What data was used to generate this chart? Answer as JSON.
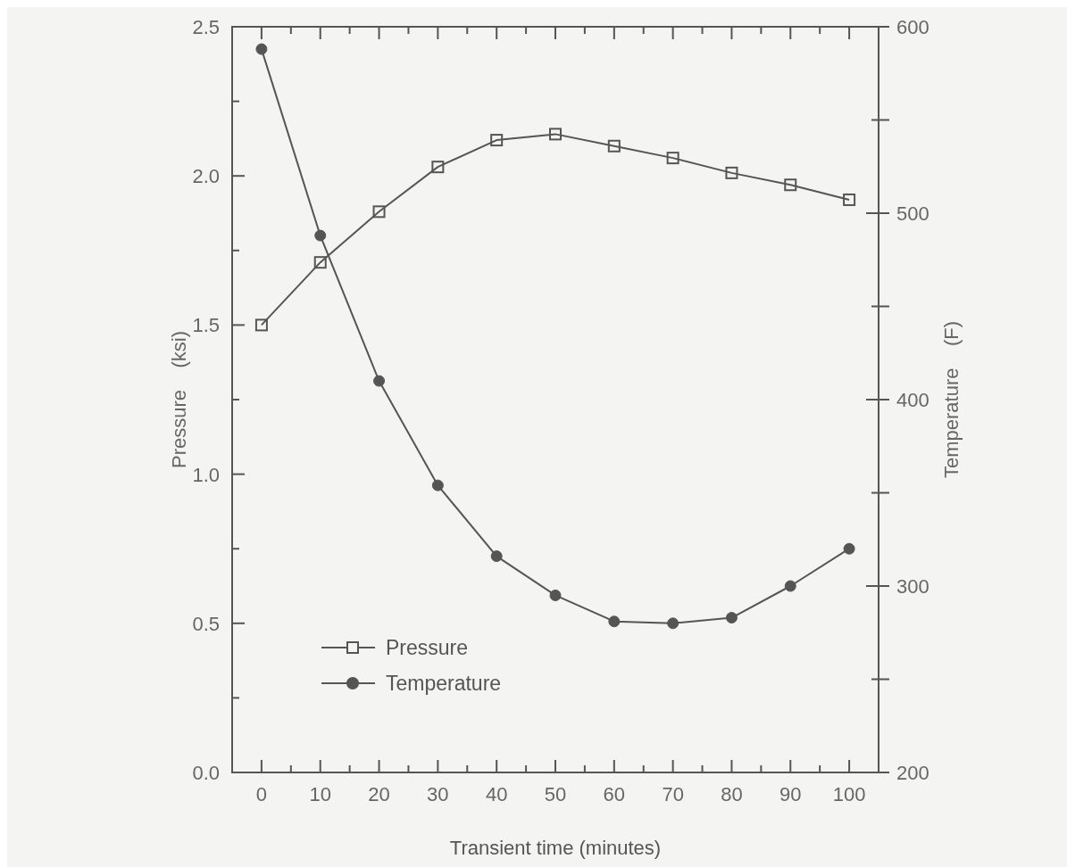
{
  "chart_data": {
    "type": "line",
    "xlabel": "Transient time (minutes)",
    "ylabel": "Pressure    (ksi)",
    "y2label": "Temperature    (F)",
    "x": [
      0,
      10,
      20,
      30,
      40,
      50,
      60,
      70,
      80,
      90,
      100
    ],
    "series": [
      {
        "name": "Pressure",
        "color": "#555555",
        "marker": "square",
        "values": [
          1.5,
          1.71,
          1.88,
          2.03,
          2.12,
          2.14,
          2.1,
          2.06,
          2.01,
          1.97,
          1.92
        ]
      },
      {
        "name": "Temperature",
        "color": "#555555",
        "marker": "circle",
        "axis": "y2",
        "values": [
          588,
          488,
          410,
          354,
          316,
          295,
          281,
          280,
          283,
          300,
          320
        ]
      }
    ],
    "xlim": [
      -5,
      105
    ],
    "xticks": [
      0,
      {
        "value": 5,
        "label": null
      },
      10,
      {
        "value": 15,
        "label": null
      },
      20,
      {
        "value": 25,
        "label": null
      },
      30,
      {
        "value": 35,
        "label": null
      },
      40,
      {
        "value": 45,
        "label": null
      },
      50,
      {
        "value": 55,
        "label": null
      },
      60,
      {
        "value": 65,
        "label": null
      },
      70,
      {
        "value": 75,
        "label": null
      },
      80,
      {
        "value": 85,
        "label": null
      },
      90,
      {
        "value": 95,
        "label": null
      },
      100
    ],
    "ylim": [
      0,
      2.5
    ],
    "yticks": [
      {
        "value": 0,
        "label": "0.0"
      },
      {
        "value": 0.25,
        "label": null
      },
      {
        "value": 0.5,
        "label": "0.5"
      },
      {
        "value": 0.75,
        "label": null
      },
      {
        "value": 1,
        "label": "1.0"
      },
      {
        "value": 1.25,
        "label": null
      },
      {
        "value": 1.5,
        "label": "1.5"
      },
      {
        "value": 1.75,
        "label": null
      },
      {
        "value": 2,
        "label": "2.0"
      },
      {
        "value": 2.25,
        "label": null
      },
      {
        "value": 2.5,
        "label": "2.5"
      }
    ],
    "y2lim": [
      200,
      600
    ],
    "y2ticks": [
      200,
      {
        "value": 250,
        "label": null
      },
      300,
      {
        "value": 350,
        "label": null
      },
      400,
      {
        "value": 450,
        "label": null
      },
      500,
      {
        "value": 550,
        "label": null
      },
      600
    ],
    "legend": "bottom left",
    "line_style": "solid"
  }
}
